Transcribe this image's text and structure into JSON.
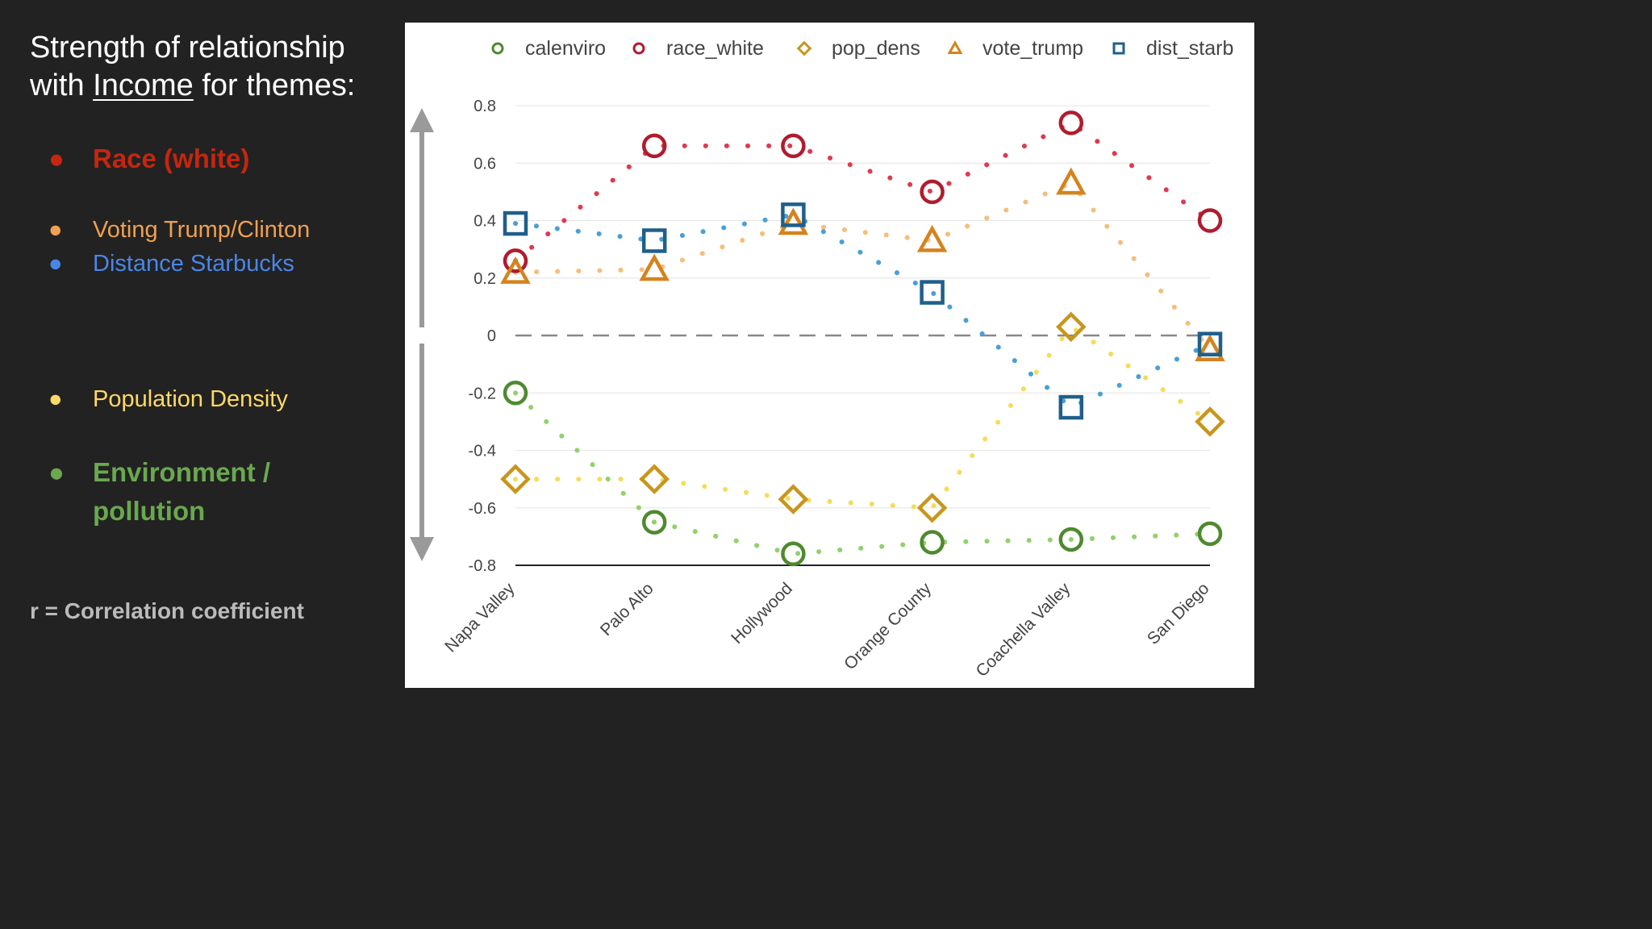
{
  "slide": {
    "title_line1": "Strength of relationship",
    "title_line2_prefix": "with ",
    "title_line2_underlined": "Income",
    "title_line2_suffix": " for themes:",
    "bullet_symbol": "●",
    "themes": [
      {
        "label": "Race (white)",
        "color": "#c5260f"
      },
      {
        "label": "Voting Trump/Clinton",
        "color": "#f0a050"
      },
      {
        "label": "Distance Starbucks",
        "color": "#4a86e8"
      },
      {
        "label": "Population Density",
        "color": "#ffd966"
      },
      {
        "label": "Environment / pollution",
        "color": "#6aa84f"
      }
    ],
    "footnote": "r = Correlation coefficient"
  },
  "chart_data": {
    "type": "scatter",
    "categories": [
      "Napa Valley",
      "Palo Alto",
      "Hollywood",
      "Orange County",
      "Coachella Valley",
      "San Diego"
    ],
    "ylim": [
      -0.8,
      0.8
    ],
    "yticks": [
      0.8,
      0.6,
      0.4,
      0.2,
      0,
      -0.2,
      -0.4,
      -0.6,
      -0.8
    ],
    "legend_position": "top",
    "grid": true,
    "zero_line": "dashed",
    "series": [
      {
        "name": "calenviro",
        "marker": "circle",
        "color": "#4e8a2e",
        "line_color": "#8fd26a",
        "values": [
          -0.2,
          -0.65,
          -0.76,
          -0.72,
          -0.71,
          -0.69
        ]
      },
      {
        "name": "race_white",
        "marker": "circle",
        "color": "#b01c2e",
        "line_color": "#e0394f",
        "values": [
          0.26,
          0.66,
          0.66,
          0.5,
          0.74,
          0.4
        ]
      },
      {
        "name": "pop_dens",
        "marker": "diamond",
        "color": "#c8961e",
        "line_color": "#f5dc5a",
        "values": [
          -0.5,
          -0.5,
          -0.57,
          -0.6,
          0.03,
          -0.3
        ]
      },
      {
        "name": "vote_trump",
        "marker": "triangle",
        "color": "#d4831e",
        "line_color": "#f6be7a",
        "values": [
          0.22,
          0.23,
          0.39,
          0.33,
          0.53,
          -0.05
        ]
      },
      {
        "name": "dist_starb",
        "marker": "square",
        "color": "#1f5f8b",
        "line_color": "#4a9fd9",
        "values": [
          0.39,
          0.33,
          0.42,
          0.15,
          -0.25,
          -0.03
        ]
      }
    ]
  }
}
